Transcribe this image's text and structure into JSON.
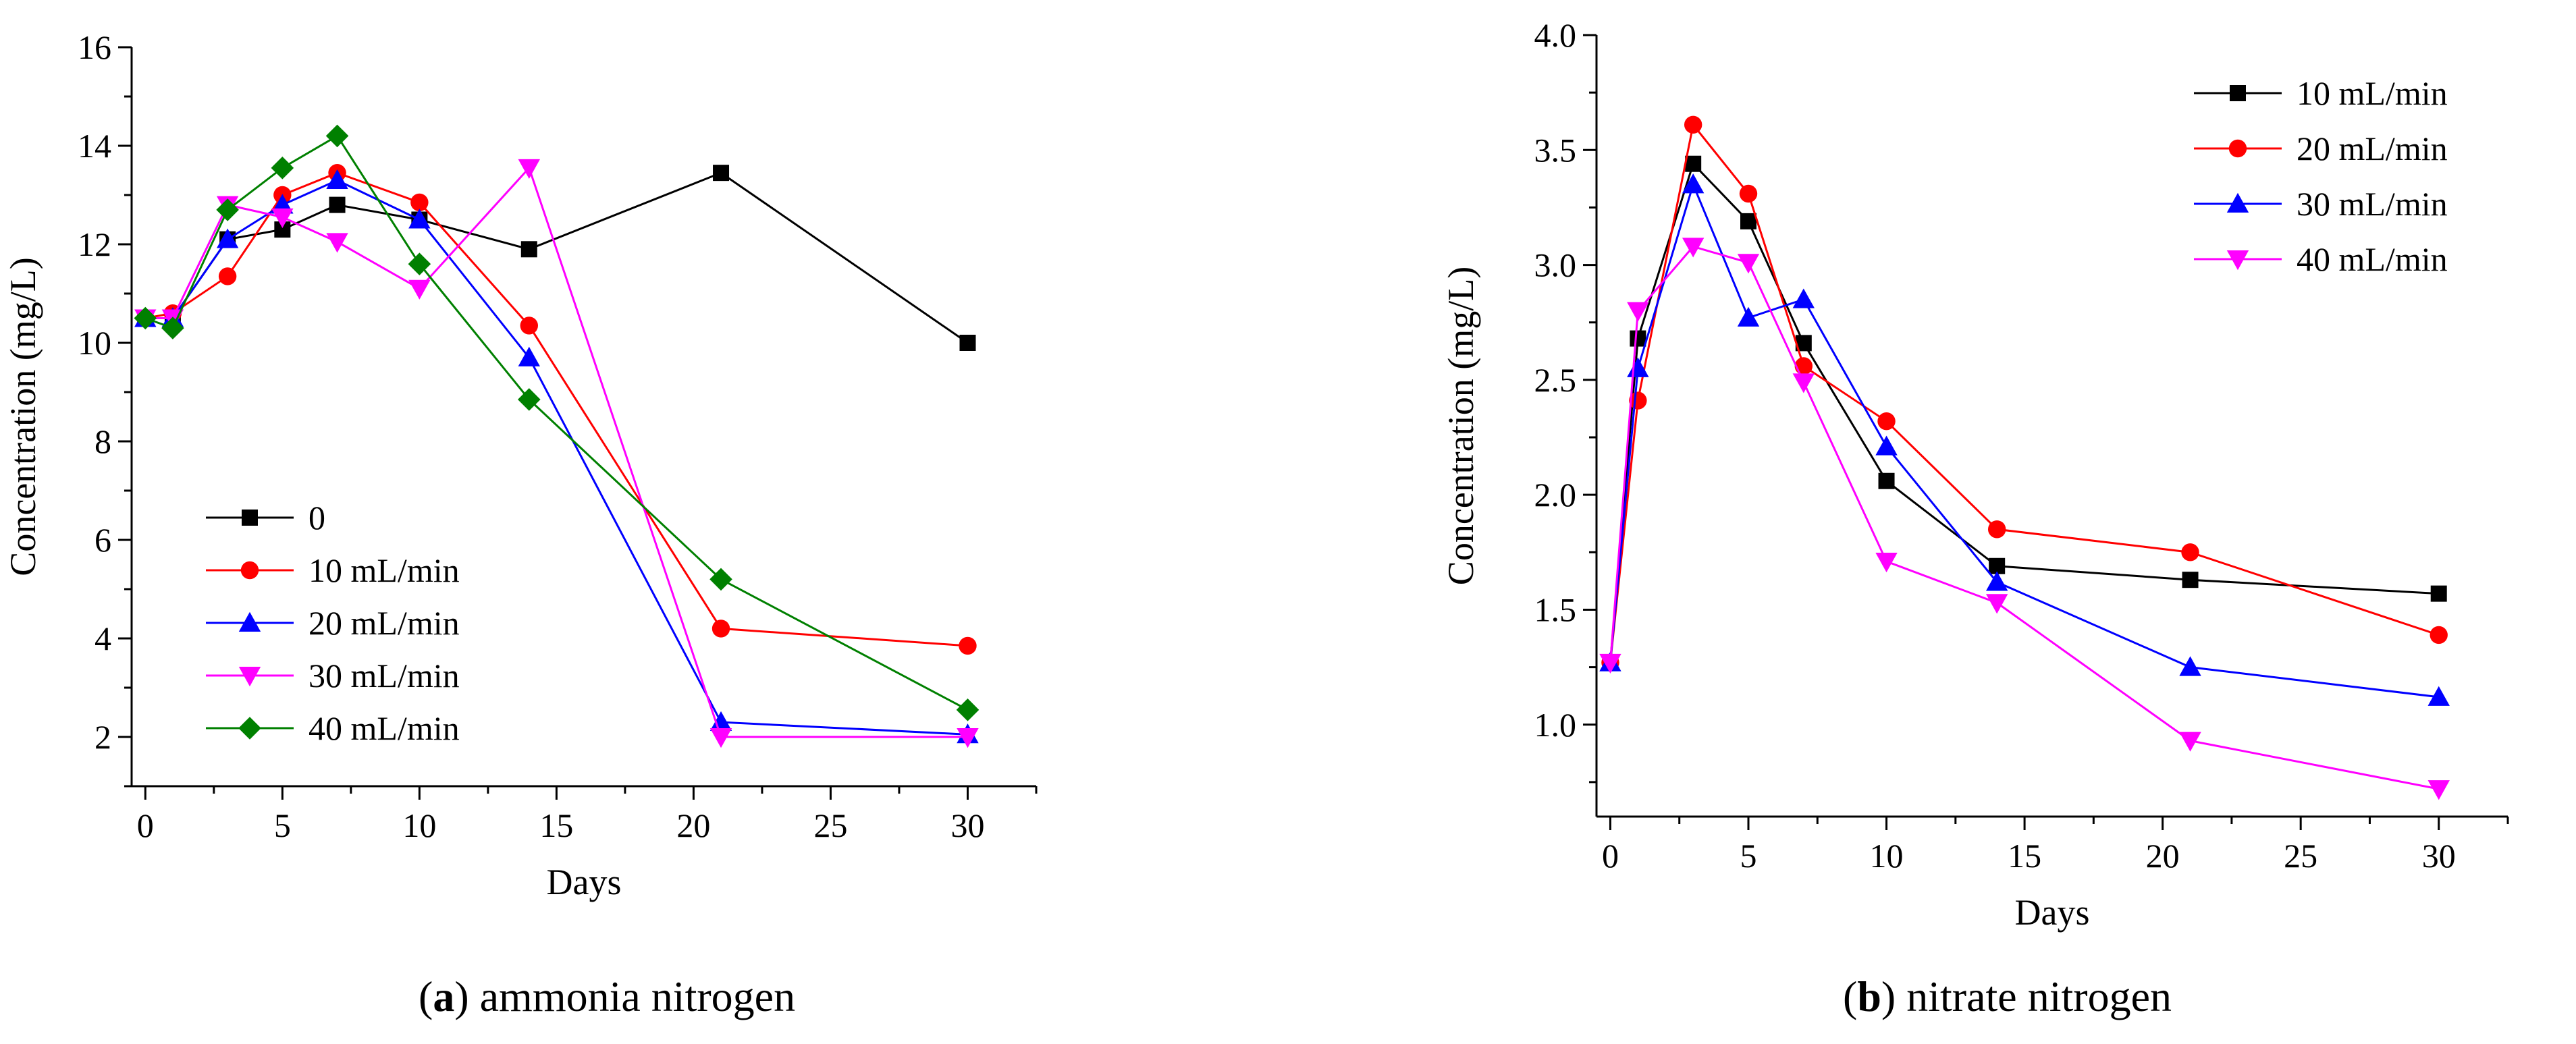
{
  "chart_data": [
    {
      "type": "line",
      "title": "",
      "caption_letter": "a",
      "caption_text": "ammonia nitrogen",
      "xlabel": "Days",
      "ylabel": "Concentration (mg/L)",
      "xlim": [
        -0.5,
        32.5
      ],
      "ylim": [
        1,
        16
      ],
      "xticks": [
        0,
        5,
        10,
        15,
        20,
        25,
        30
      ],
      "yticks": [
        2,
        4,
        6,
        8,
        10,
        12,
        14,
        16
      ],
      "x": [
        0,
        1,
        3,
        5,
        7,
        10,
        14,
        21,
        30
      ],
      "legend": "lower-left",
      "series": [
        {
          "name": "0",
          "color": "#000000",
          "marker": "square",
          "x": [
            0,
            1,
            3,
            5,
            7,
            10,
            14,
            21,
            30
          ],
          "values": [
            10.5,
            10.5,
            12.1,
            12.3,
            12.8,
            12.5,
            11.9,
            13.45,
            10.0
          ]
        },
        {
          "name": "10 mL/min",
          "color": "#ff0000",
          "marker": "circle",
          "x": [
            0,
            1,
            3,
            5,
            7,
            10,
            14,
            21,
            30
          ],
          "values": [
            10.5,
            10.6,
            11.35,
            13.0,
            13.45,
            12.85,
            10.35,
            4.2,
            3.85
          ]
        },
        {
          "name": "20 mL/min",
          "color": "#0000ff",
          "marker": "triangle-up",
          "x": [
            0,
            1,
            3,
            5,
            7,
            10,
            14,
            21,
            30
          ],
          "values": [
            10.5,
            10.5,
            12.1,
            12.8,
            13.3,
            12.5,
            9.7,
            2.3,
            2.05
          ]
        },
        {
          "name": "30 mL/min",
          "color": "#ff00ff",
          "marker": "triangle-down",
          "x": [
            0,
            1,
            3,
            5,
            7,
            10,
            14,
            21,
            30
          ],
          "values": [
            10.5,
            10.5,
            12.8,
            12.55,
            12.05,
            11.1,
            13.55,
            2.0,
            2.0
          ]
        },
        {
          "name": "40 mL/min",
          "color": "#008000",
          "marker": "diamond",
          "x": [
            0,
            1,
            3,
            5,
            7,
            10,
            14,
            21,
            30
          ],
          "values": [
            10.5,
            10.3,
            12.7,
            13.55,
            14.2,
            11.6,
            8.85,
            5.2,
            2.55
          ]
        }
      ]
    },
    {
      "type": "line",
      "title": "",
      "caption_letter": "b",
      "caption_text": "nitrate nitrogen",
      "xlabel": "Days",
      "ylabel": "Concentration (mg/L)",
      "xlim": [
        -0.5,
        32.5
      ],
      "ylim": [
        0.6,
        4.0
      ],
      "xticks": [
        0,
        5,
        10,
        15,
        20,
        25,
        30
      ],
      "yticks": [
        1.0,
        1.5,
        2.0,
        2.5,
        3.0,
        3.5,
        4.0
      ],
      "x": [
        0,
        1,
        3,
        5,
        7,
        10,
        14,
        21,
        30
      ],
      "legend": "top-right",
      "series": [
        {
          "name": "10 mL/min",
          "color": "#000000",
          "marker": "square",
          "x": [
            0,
            1,
            3,
            5,
            7,
            10,
            14,
            21,
            30
          ],
          "values": [
            1.27,
            2.68,
            3.44,
            3.19,
            2.66,
            2.06,
            1.69,
            1.63,
            1.57
          ]
        },
        {
          "name": "20 mL/min",
          "color": "#ff0000",
          "marker": "circle",
          "x": [
            0,
            1,
            3,
            5,
            7,
            10,
            14,
            21,
            30
          ],
          "values": [
            1.27,
            2.41,
            3.61,
            3.31,
            2.56,
            2.32,
            1.85,
            1.75,
            1.39
          ]
        },
        {
          "name": "30 mL/min",
          "color": "#0000ff",
          "marker": "triangle-up",
          "x": [
            0,
            1,
            3,
            5,
            7,
            10,
            14,
            21,
            30
          ],
          "values": [
            1.27,
            2.55,
            3.35,
            2.77,
            2.85,
            2.21,
            1.62,
            1.25,
            1.12
          ]
        },
        {
          "name": "40 mL/min",
          "color": "#ff00ff",
          "marker": "triangle-down",
          "x": [
            0,
            1,
            3,
            5,
            7,
            10,
            14,
            21,
            30
          ],
          "values": [
            1.27,
            2.8,
            3.08,
            3.01,
            2.49,
            1.71,
            1.53,
            0.93,
            0.72
          ]
        }
      ]
    }
  ]
}
